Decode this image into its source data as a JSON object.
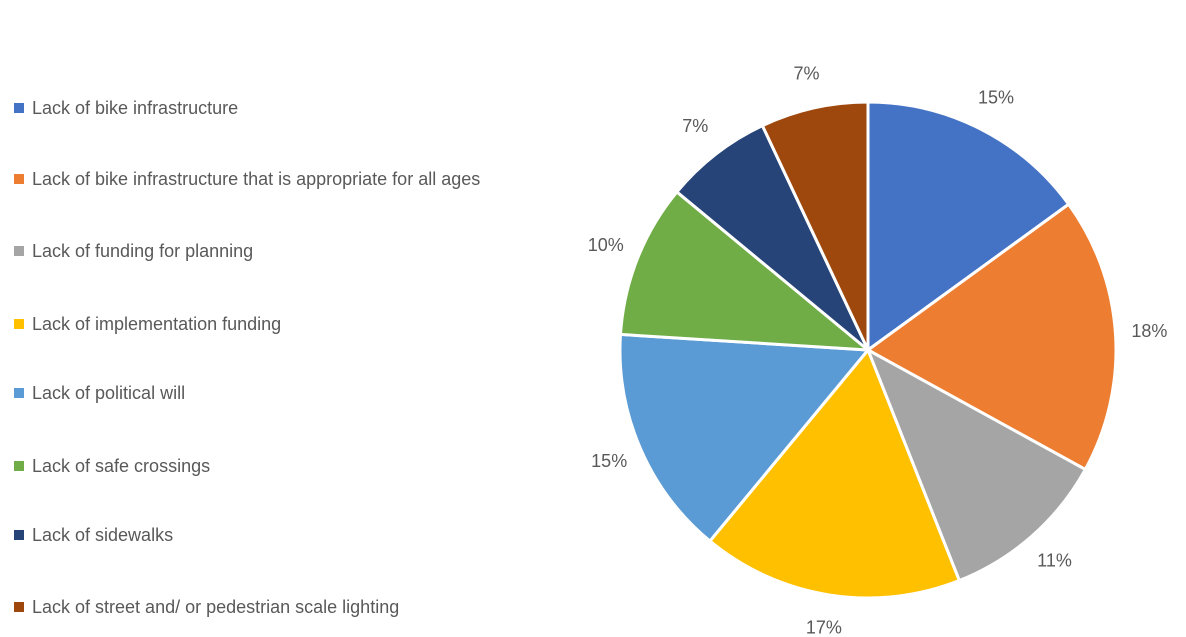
{
  "chart_data": {
    "type": "pie",
    "title": "",
    "legend_position": "left",
    "categories": [
      "Lack of bike infrastructure",
      "Lack of bike infrastructure that is appropriate for all ages",
      "Lack of funding for planning",
      "Lack of implementation funding",
      "Lack of political will",
      "Lack of safe crossings",
      "Lack of sidewalks",
      "Lack of street and/ or pedestrian scale lighting"
    ],
    "values": [
      15,
      18,
      11,
      17,
      15,
      10,
      7,
      7
    ],
    "labels": [
      "15%",
      "18%",
      "11%",
      "17%",
      "15%",
      "10%",
      "7%",
      "7%"
    ],
    "colors": [
      "#4472C4",
      "#ED7D31",
      "#A5A5A5",
      "#FFC000",
      "#5B9BD5",
      "#70AD47",
      "#264478",
      "#9E480E"
    ]
  }
}
